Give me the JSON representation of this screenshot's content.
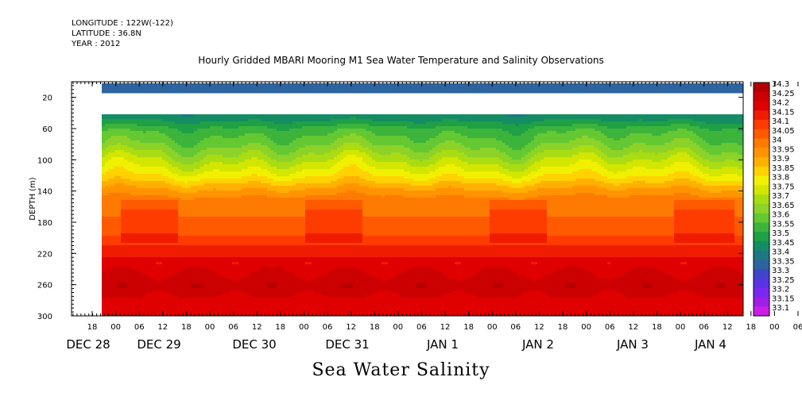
{
  "header": {
    "longitude": "LONGITUDE : 122W(-122)",
    "latitude": "LATITUDE : 36.8N",
    "year": "YEAR : 2012",
    "title": "Hourly Gridded MBARI Mooring M1 Sea Water Temperature and Salinity Observations"
  },
  "footer_title": "Sea Water Salinity",
  "chart_data": {
    "type": "heatmap",
    "title": "Hourly Gridded MBARI Mooring M1 Sea Water Temperature and Salinity Observations",
    "variable": "Sea Water Salinity",
    "ylabel": "DEPTH (m)",
    "ylim": [
      300,
      0
    ],
    "y_ticks": [
      20,
      60,
      100,
      140,
      180,
      220,
      260,
      300
    ],
    "x_hour_ticks": [
      "18",
      "00",
      "06",
      "12",
      "18",
      "00",
      "06",
      "12",
      "18",
      "00",
      "06",
      "12",
      "18",
      "00",
      "06",
      "12",
      "18",
      "00",
      "06",
      "12",
      "18",
      "00",
      "06",
      "12",
      "18",
      "00",
      "06",
      "12",
      "18",
      "00",
      "06",
      "12",
      "18",
      "00",
      "06",
      "12"
    ],
    "x_day_labels": [
      "DEC 28",
      "DEC 29",
      "DEC 30",
      "DEC 31",
      "JAN  1",
      "JAN  2",
      "JAN  3",
      "JAN  4"
    ],
    "x_range": [
      "DEC 28 12:00",
      "JAN 4 15:00"
    ],
    "data_start": "DEC 28 18:00",
    "colorbar": {
      "levels": [
        "34.3",
        "34.25",
        "34.2",
        "34.15",
        "34.1",
        "34.05",
        "34",
        "33.95",
        "33.9",
        "33.85",
        "33.8",
        "33.75",
        "33.7",
        "33.65",
        "33.6",
        "33.55",
        "33.5",
        "33.45",
        "33.4",
        "33.35",
        "33.3",
        "33.25",
        "33.2",
        "33.15",
        "33.1"
      ],
      "colors": [
        "#b40000",
        "#cc0000",
        "#e00000",
        "#f01c00",
        "#ff3c00",
        "#ff5a00",
        "#ff7a00",
        "#ff9400",
        "#ffb000",
        "#ffd200",
        "#f0f000",
        "#d2e600",
        "#aadc14",
        "#8cd228",
        "#64c832",
        "#3cb43c",
        "#1ea046",
        "#148c64",
        "#1e7882",
        "#2d64a0",
        "#3c46c8",
        "#5a32e6",
        "#7828f0",
        "#a01ee6",
        "#c81ee6"
      ]
    },
    "profile": [
      {
        "depth": 10,
        "salinity": 33.35
      },
      {
        "depth": 45,
        "salinity": 33.45
      },
      {
        "depth": 60,
        "salinity": 33.55
      },
      {
        "depth": 80,
        "salinity": 33.62
      },
      {
        "depth": 100,
        "salinity": 33.72
      },
      {
        "depth": 120,
        "salinity": 33.82
      },
      {
        "depth": 135,
        "salinity": 33.92
      },
      {
        "depth": 150,
        "salinity": 34.0
      },
      {
        "depth": 190,
        "salinity": 34.05
      },
      {
        "depth": 215,
        "salinity": 34.15
      },
      {
        "depth": 240,
        "salinity": 34.22
      },
      {
        "depth": 260,
        "salinity": 34.26
      },
      {
        "depth": 285,
        "salinity": 34.2
      },
      {
        "depth": 300,
        "salinity": 34.18
      }
    ],
    "no_data_depth_range": [
      14,
      40
    ]
  }
}
